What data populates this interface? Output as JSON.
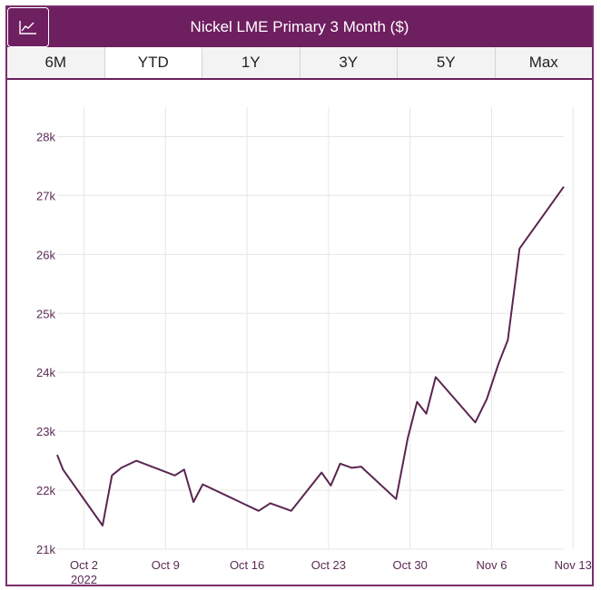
{
  "header": {
    "title": "Nickel LME Primary 3 Month ($)",
    "icon": "line-chart-icon"
  },
  "tabs": [
    {
      "label": "6M",
      "active": false
    },
    {
      "label": "YTD",
      "active": true
    },
    {
      "label": "1Y",
      "active": false
    },
    {
      "label": "3Y",
      "active": false
    },
    {
      "label": "5Y",
      "active": false
    },
    {
      "label": "Max",
      "active": false
    }
  ],
  "colors": {
    "brand": "#6e1f60",
    "line": "#5a2550",
    "grid": "#e6e6e6"
  },
  "chart_data": {
    "type": "line",
    "title": "Nickel LME Primary 3 Month ($)",
    "xlabel": "",
    "ylabel": "",
    "ylim": [
      21000,
      28500
    ],
    "y_ticks": [
      21000,
      22000,
      23000,
      24000,
      25000,
      26000,
      27000,
      28000
    ],
    "y_tick_labels": [
      "21k",
      "22k",
      "23k",
      "24k",
      "25k",
      "26k",
      "27k",
      "28k"
    ],
    "x_ticks": [
      {
        "day": 2,
        "label": "Oct 2",
        "sublabel": "2022"
      },
      {
        "day": 9,
        "label": "Oct 9"
      },
      {
        "day": 16,
        "label": "Oct 16"
      },
      {
        "day": 23,
        "label": "Oct 23"
      },
      {
        "day": 30,
        "label": "Oct 30"
      },
      {
        "day": 37,
        "label": "Nov 6"
      },
      {
        "day": 44,
        "label": "Nov 13"
      }
    ],
    "grid": true,
    "series": [
      {
        "points": [
          [
            -0.3,
            22600
          ],
          [
            0.2,
            22350
          ],
          [
            3.6,
            21400
          ],
          [
            4.4,
            22250
          ],
          [
            5.2,
            22380
          ],
          [
            6.5,
            22500
          ],
          [
            9.8,
            22250
          ],
          [
            10.6,
            22350
          ],
          [
            11.4,
            21800
          ],
          [
            12.2,
            22100
          ],
          [
            15.4,
            21800
          ],
          [
            17.0,
            21650
          ],
          [
            18.0,
            21780
          ],
          [
            19.8,
            21650
          ],
          [
            22.4,
            22300
          ],
          [
            23.2,
            22080
          ],
          [
            24.0,
            22450
          ],
          [
            25.0,
            22380
          ],
          [
            25.8,
            22400
          ],
          [
            28.8,
            21850
          ],
          [
            29.8,
            22880
          ],
          [
            30.6,
            23500
          ],
          [
            31.4,
            23300
          ],
          [
            32.2,
            23920
          ],
          [
            35.6,
            23150
          ],
          [
            36.6,
            23550
          ],
          [
            37.6,
            24150
          ],
          [
            38.4,
            24550
          ],
          [
            39.4,
            26100
          ],
          [
            43.2,
            27150
          ]
        ]
      }
    ]
  }
}
